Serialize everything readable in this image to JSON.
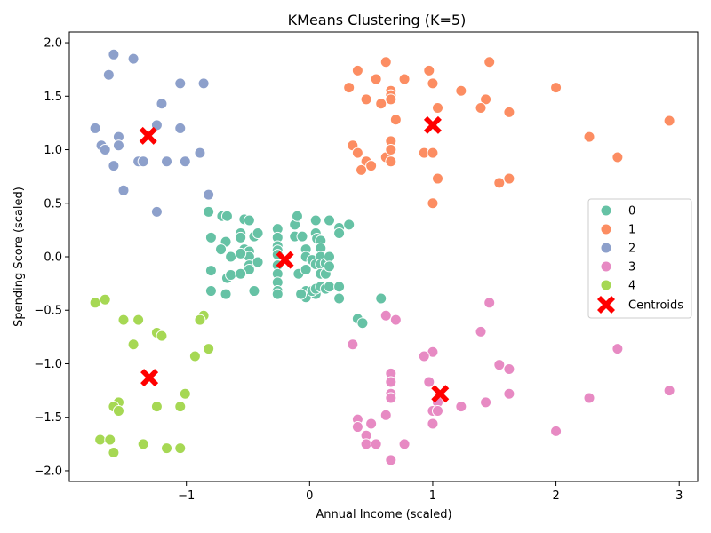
{
  "chart_data": {
    "type": "scatter",
    "title": "KMeans Clustering (K=5)",
    "xlabel": "Annual Income (scaled)",
    "ylabel": "Spending Score (scaled)",
    "xlim": [
      -1.95,
      3.15
    ],
    "ylim": [
      -2.1,
      2.1
    ],
    "xticks": [
      -1,
      0,
      1,
      2,
      3
    ],
    "xtick_labels": [
      "−1",
      "0",
      "1",
      "2",
      "3"
    ],
    "yticks": [
      -2.0,
      -1.5,
      -1.0,
      -0.5,
      0.0,
      0.5,
      1.0,
      1.5,
      2.0
    ],
    "ytick_labels": [
      "−2.0",
      "−1.5",
      "−1.0",
      "−0.5",
      "0.0",
      "0.5",
      "1.0",
      "1.5",
      "2.0"
    ],
    "grid": false,
    "legend_position": "right",
    "series": [
      {
        "name": "0",
        "color": "#66c2a5",
        "points": [
          [
            -0.82,
            0.42
          ],
          [
            -0.71,
            0.38
          ],
          [
            -0.67,
            0.38
          ],
          [
            -0.8,
            0.18
          ],
          [
            -0.68,
            0.14
          ],
          [
            -0.72,
            0.07
          ],
          [
            -0.64,
            0.0
          ],
          [
            -0.8,
            -0.13
          ],
          [
            -0.67,
            -0.2
          ],
          [
            -0.64,
            -0.17
          ],
          [
            -0.8,
            -0.32
          ],
          [
            -0.68,
            -0.35
          ],
          [
            -0.56,
            0.22
          ],
          [
            -0.56,
            0.18
          ],
          [
            -0.53,
            0.35
          ],
          [
            -0.49,
            0.34
          ],
          [
            -0.53,
            0.07
          ],
          [
            -0.49,
            0.05
          ],
          [
            -0.49,
            0.0
          ],
          [
            -0.49,
            -0.08
          ],
          [
            -0.49,
            -0.12
          ],
          [
            -0.56,
            0.03
          ],
          [
            -0.56,
            -0.16
          ],
          [
            -0.45,
            0.19
          ],
          [
            -0.42,
            0.22
          ],
          [
            -0.42,
            -0.05
          ],
          [
            -0.45,
            -0.32
          ],
          [
            -0.26,
            0.26
          ],
          [
            -0.26,
            0.18
          ],
          [
            -0.26,
            0.1
          ],
          [
            -0.26,
            0.06
          ],
          [
            -0.26,
            0.02
          ],
          [
            -0.26,
            -0.08
          ],
          [
            -0.26,
            -0.16
          ],
          [
            -0.26,
            -0.24
          ],
          [
            -0.26,
            -0.32
          ],
          [
            -0.26,
            -0.35
          ],
          [
            -0.12,
            0.3
          ],
          [
            -0.12,
            0.19
          ],
          [
            -0.1,
            0.38
          ],
          [
            -0.06,
            0.19
          ],
          [
            -0.09,
            -0.16
          ],
          [
            -0.03,
            0.07
          ],
          [
            -0.03,
            0.0
          ],
          [
            -0.03,
            -0.12
          ],
          [
            -0.03,
            -0.32
          ],
          [
            -0.03,
            -0.38
          ],
          [
            -0.07,
            -0.35
          ],
          [
            0.02,
            -0.03
          ],
          [
            0.05,
            -0.07
          ],
          [
            0.05,
            0.34
          ],
          [
            0.05,
            0.22
          ],
          [
            0.06,
            0.17
          ],
          [
            0.05,
            -0.35
          ],
          [
            0.02,
            -0.32
          ],
          [
            0.05,
            -0.3
          ],
          [
            0.09,
            0.15
          ],
          [
            0.09,
            0.08
          ],
          [
            0.09,
            0.0
          ],
          [
            0.09,
            -0.07
          ],
          [
            0.09,
            -0.16
          ],
          [
            0.09,
            -0.28
          ],
          [
            0.13,
            -0.06
          ],
          [
            0.13,
            -0.16
          ],
          [
            0.13,
            -0.3
          ],
          [
            0.16,
            0.34
          ],
          [
            0.16,
            0.0
          ],
          [
            0.16,
            -0.09
          ],
          [
            0.16,
            -0.28
          ],
          [
            0.24,
            0.27
          ],
          [
            0.24,
            0.22
          ],
          [
            0.24,
            -0.28
          ],
          [
            0.24,
            -0.39
          ],
          [
            0.32,
            0.3
          ],
          [
            0.39,
            -0.58
          ],
          [
            0.43,
            -0.62
          ],
          [
            0.58,
            -0.39
          ]
        ]
      },
      {
        "name": "1",
        "color": "#fc8d62",
        "points": [
          [
            0.39,
            1.74
          ],
          [
            0.32,
            1.58
          ],
          [
            0.54,
            1.66
          ],
          [
            0.62,
            1.82
          ],
          [
            0.77,
            1.66
          ],
          [
            0.97,
            1.74
          ],
          [
            1.0,
            1.62
          ],
          [
            1.46,
            1.82
          ],
          [
            1.23,
            1.55
          ],
          [
            2.0,
            1.58
          ],
          [
            1.43,
            1.47
          ],
          [
            1.39,
            1.39
          ],
          [
            1.62,
            1.35
          ],
          [
            0.46,
            1.47
          ],
          [
            0.58,
            1.43
          ],
          [
            0.66,
            1.55
          ],
          [
            0.66,
            1.51
          ],
          [
            0.66,
            1.47
          ],
          [
            0.7,
            1.28
          ],
          [
            1.04,
            1.39
          ],
          [
            2.92,
            1.27
          ],
          [
            2.27,
            1.12
          ],
          [
            2.5,
            0.93
          ],
          [
            0.35,
            1.04
          ],
          [
            0.39,
            0.97
          ],
          [
            0.46,
            0.89
          ],
          [
            0.5,
            0.85
          ],
          [
            0.42,
            0.81
          ],
          [
            0.62,
            0.93
          ],
          [
            0.66,
            1.08
          ],
          [
            0.66,
            1.0
          ],
          [
            0.66,
            0.89
          ],
          [
            0.93,
            0.97
          ],
          [
            1.0,
            0.97
          ],
          [
            1.04,
            0.73
          ],
          [
            1.0,
            0.5
          ],
          [
            1.54,
            0.69
          ],
          [
            1.62,
            0.73
          ]
        ]
      },
      {
        "name": "2",
        "color": "#8da0cb",
        "points": [
          [
            -1.59,
            1.89
          ],
          [
            -1.43,
            1.85
          ],
          [
            -1.63,
            1.7
          ],
          [
            -1.05,
            1.62
          ],
          [
            -0.86,
            1.62
          ],
          [
            -1.2,
            1.43
          ],
          [
            -1.74,
            1.2
          ],
          [
            -1.24,
            1.23
          ],
          [
            -1.05,
            1.2
          ],
          [
            -1.55,
            1.12
          ],
          [
            -1.69,
            1.04
          ],
          [
            -1.55,
            1.04
          ],
          [
            -1.66,
            1.0
          ],
          [
            -1.59,
            0.85
          ],
          [
            -1.39,
            0.89
          ],
          [
            -1.35,
            0.89
          ],
          [
            -1.16,
            0.89
          ],
          [
            -1.01,
            0.89
          ],
          [
            -0.89,
            0.97
          ],
          [
            -1.51,
            0.62
          ],
          [
            -0.82,
            0.58
          ],
          [
            -1.24,
            0.42
          ]
        ]
      },
      {
        "name": "3",
        "color": "#e78ac3",
        "points": [
          [
            0.62,
            -0.55
          ],
          [
            0.7,
            -0.59
          ],
          [
            0.35,
            -0.82
          ],
          [
            1.46,
            -0.43
          ],
          [
            1.39,
            -0.7
          ],
          [
            2.5,
            -0.86
          ],
          [
            1.0,
            -0.89
          ],
          [
            0.93,
            -0.93
          ],
          [
            1.54,
            -1.01
          ],
          [
            1.62,
            -1.05
          ],
          [
            0.66,
            -1.09
          ],
          [
            0.66,
            -1.17
          ],
          [
            0.97,
            -1.17
          ],
          [
            0.66,
            -1.28
          ],
          [
            0.66,
            -1.32
          ],
          [
            1.04,
            -1.36
          ],
          [
            1.0,
            -1.44
          ],
          [
            1.04,
            -1.44
          ],
          [
            1.23,
            -1.4
          ],
          [
            1.43,
            -1.36
          ],
          [
            1.62,
            -1.28
          ],
          [
            2.27,
            -1.32
          ],
          [
            2.92,
            -1.25
          ],
          [
            0.39,
            -1.52
          ],
          [
            0.39,
            -1.59
          ],
          [
            0.5,
            -1.56
          ],
          [
            0.62,
            -1.48
          ],
          [
            1.0,
            -1.56
          ],
          [
            0.46,
            -1.67
          ],
          [
            0.46,
            -1.75
          ],
          [
            0.54,
            -1.75
          ],
          [
            0.77,
            -1.75
          ],
          [
            0.66,
            -1.9
          ],
          [
            2.0,
            -1.63
          ]
        ]
      },
      {
        "name": "4",
        "color": "#a6d854",
        "points": [
          [
            -1.74,
            -0.43
          ],
          [
            -1.66,
            -0.4
          ],
          [
            -1.51,
            -0.59
          ],
          [
            -1.39,
            -0.59
          ],
          [
            -1.43,
            -0.82
          ],
          [
            -1.24,
            -0.71
          ],
          [
            -1.2,
            -0.74
          ],
          [
            -0.86,
            -0.55
          ],
          [
            -0.89,
            -0.59
          ],
          [
            -0.82,
            -0.86
          ],
          [
            -0.93,
            -0.93
          ],
          [
            -1.01,
            -1.28
          ],
          [
            -1.05,
            -1.4
          ],
          [
            -1.24,
            -1.4
          ],
          [
            -1.55,
            -1.36
          ],
          [
            -1.59,
            -1.4
          ],
          [
            -1.55,
            -1.44
          ],
          [
            -1.7,
            -1.71
          ],
          [
            -1.62,
            -1.71
          ],
          [
            -1.59,
            -1.83
          ],
          [
            -1.35,
            -1.75
          ],
          [
            -1.16,
            -1.79
          ],
          [
            -1.05,
            -1.79
          ]
        ]
      }
    ],
    "centroids": {
      "name": "Centroids",
      "color": "#ff0000",
      "points": [
        [
          -1.31,
          1.13
        ],
        [
          1.0,
          1.23
        ],
        [
          -0.2,
          -0.03
        ],
        [
          -1.3,
          -1.13
        ],
        [
          1.06,
          -1.28
        ]
      ]
    }
  }
}
